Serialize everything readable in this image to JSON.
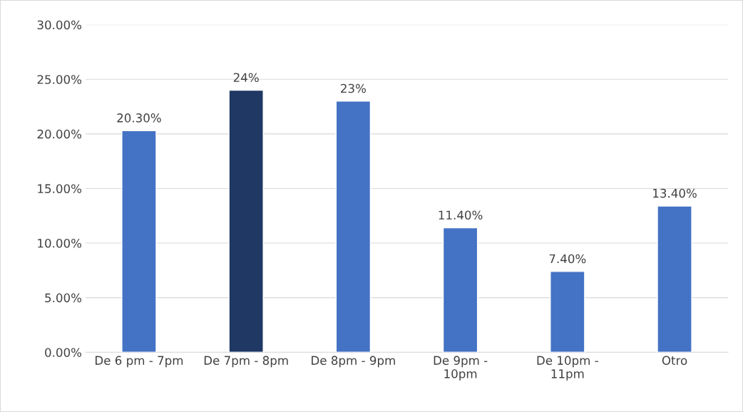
{
  "chart_data": {
    "type": "bar",
    "categories": [
      "De 6 pm - 7pm",
      "De 7pm - 8pm",
      "De 8pm - 9pm",
      "De 9pm -\n10pm",
      "De 10pm -\n11pm",
      "Otro"
    ],
    "values": [
      20.3,
      24,
      23,
      11.4,
      7.4,
      13.4
    ],
    "colors": [
      "#4472c4",
      "#1f3864",
      "#4472c4",
      "#4472c4",
      "#4472c4",
      "#4472c4"
    ],
    "value_labels": [
      "20.30%",
      "24%",
      "23%",
      "11.40%",
      "7.40%",
      "13.40%"
    ],
    "ylim": [
      0,
      30
    ],
    "yticks": [
      {
        "value": 0,
        "label": "0.00%"
      },
      {
        "value": 5,
        "label": "5.00%"
      },
      {
        "value": 10,
        "label": "10.00%"
      },
      {
        "value": 15,
        "label": "15.00%"
      },
      {
        "value": 20,
        "label": "20.00%"
      },
      {
        "value": 25,
        "label": "25.00%"
      },
      {
        "value": 30,
        "label": "30.00%"
      }
    ],
    "grid": "y"
  }
}
